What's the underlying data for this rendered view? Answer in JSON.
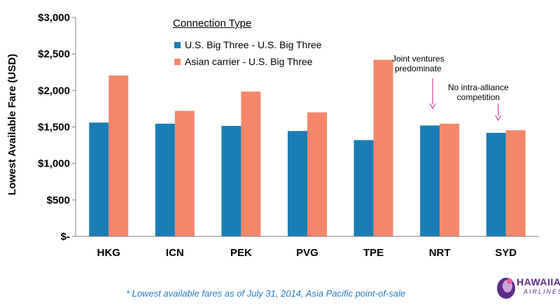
{
  "chart_data": {
    "type": "bar",
    "ylabel": "Lowest Available Fare (USD)",
    "xlabel": "",
    "categories": [
      "HKG",
      "ICN",
      "PEK",
      "PVG",
      "TPE",
      "NRT",
      "SYD"
    ],
    "ylim": [
      0,
      3000
    ],
    "yticks": [
      0,
      500,
      1000,
      1500,
      2000,
      2500,
      3000
    ],
    "ytick_labels": [
      "$-",
      "$500",
      "$1,000",
      "$1,500",
      "$2,000",
      "$2,500",
      "$3,000"
    ],
    "legend_title": "Connection Type",
    "legend_position": "top-left",
    "grid": false,
    "series": [
      {
        "name": "U.S. Big Three - U.S. Big Three",
        "color": "#1a7db5",
        "values": [
          1560,
          1545,
          1515,
          1445,
          1320,
          1520,
          1420
        ]
      },
      {
        "name": "Asian carrier - U.S. Big Three",
        "color": "#f4876a",
        "values": [
          2205,
          1720,
          1985,
          1700,
          2420,
          1545,
          1455
        ]
      }
    ],
    "annotations": [
      {
        "text_line1": "Joint ventures",
        "text_line2": "predominate",
        "target": "NRT"
      },
      {
        "text_line1": "No intra-alliance",
        "text_line2": "competition",
        "target": "SYD"
      }
    ]
  },
  "footnote": "* Lowest available fares as of July 31, 2014, Asia Pacific point-of-sale",
  "logo": {
    "name": "HAWAIIAN",
    "sub": "AIRLINES.",
    "icon": "hawaiian-airlines-logo-icon",
    "color": "#5b2d8a"
  }
}
